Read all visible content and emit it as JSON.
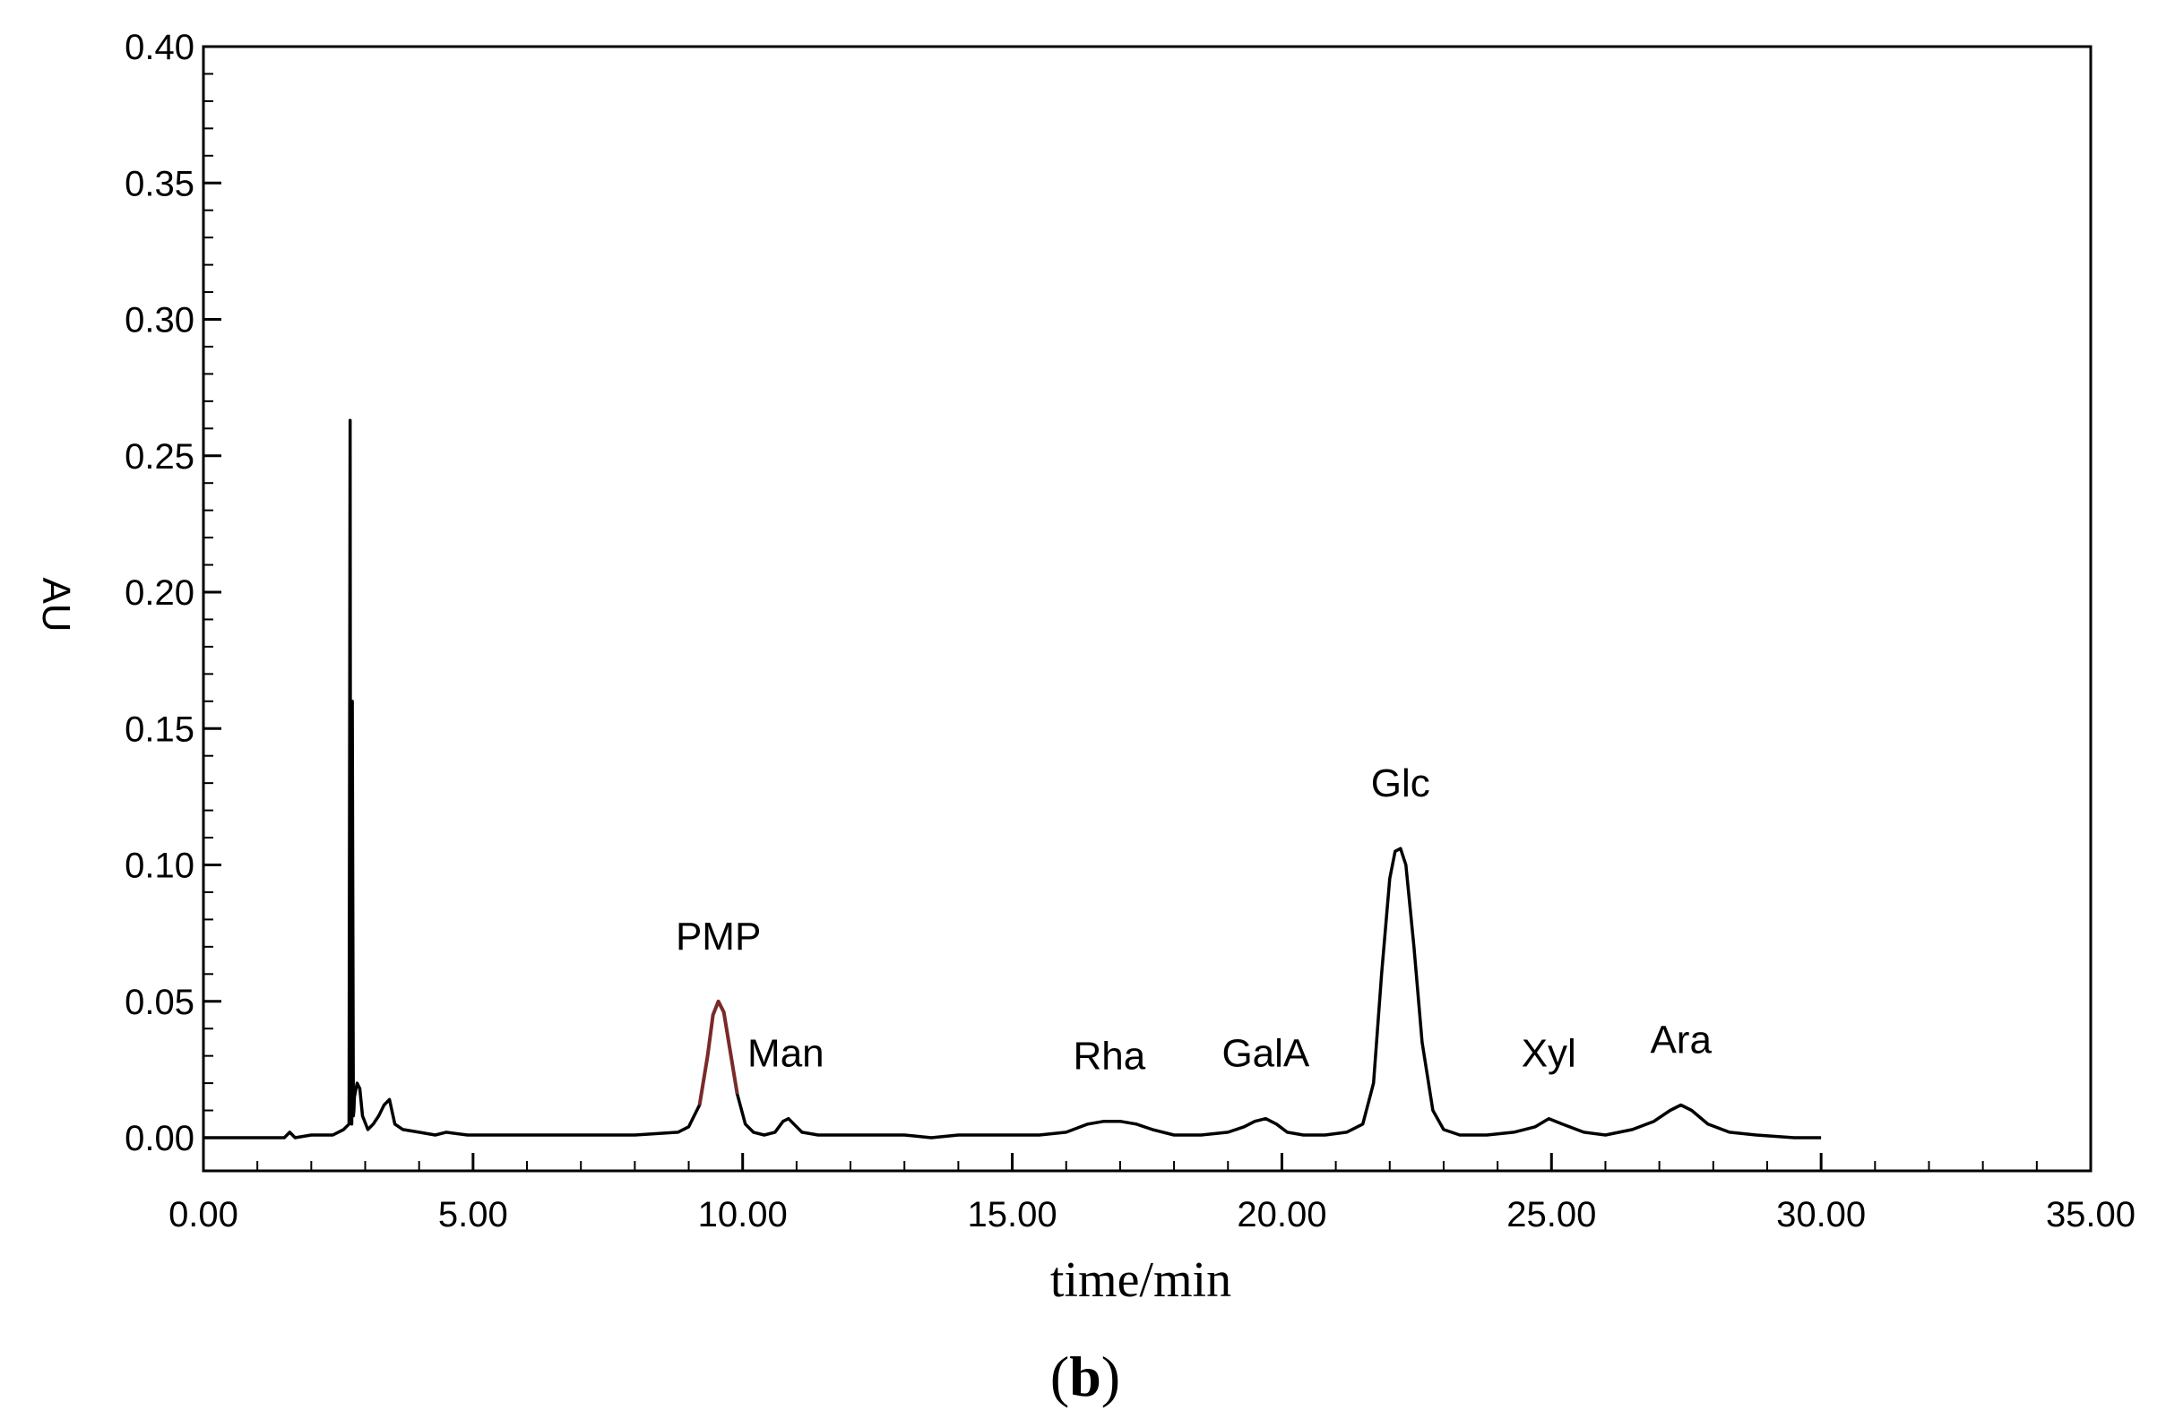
{
  "chart_data": {
    "type": "line",
    "title": "",
    "xlabel": "time/min",
    "ylabel": "AU",
    "panel_label": {
      "open": "(",
      "letter": "b",
      "close": ")"
    },
    "xlim": [
      0,
      35
    ],
    "ylim": [
      0,
      0.4
    ],
    "x_ticks": [
      "0.00",
      "5.00",
      "10.00",
      "15.00",
      "20.00",
      "25.00",
      "30.00",
      "35.00"
    ],
    "y_ticks": [
      "0.00",
      "0.05",
      "0.10",
      "0.15",
      "0.20",
      "0.25",
      "0.30",
      "0.35",
      "0.40"
    ],
    "grid": false,
    "legend": "none",
    "line_color": "#000000",
    "pmp_peak_color": "#7a2a2a",
    "annotations": [
      {
        "text": "PMP",
        "x": 9.55,
        "y": 0.05
      },
      {
        "text": "Man",
        "x": 10.8,
        "y": 0.007
      },
      {
        "text": "Rha",
        "x": 16.8,
        "y": 0.006
      },
      {
        "text": "GalA",
        "x": 19.7,
        "y": 0.007
      },
      {
        "text": "Glc",
        "x": 22.2,
        "y": 0.106
      },
      {
        "text": "Xyl",
        "x": 24.95,
        "y": 0.007
      },
      {
        "text": "Ara",
        "x": 27.4,
        "y": 0.012
      }
    ],
    "series": [
      {
        "x": [
          0.0,
          1.5,
          1.6,
          1.7,
          2.0,
          2.4,
          2.6,
          2.7,
          2.72,
          2.73,
          2.75,
          2.76,
          2.78,
          2.79,
          2.8,
          2.85,
          2.9,
          2.95,
          3.05,
          3.15,
          3.25,
          3.35,
          3.45,
          3.55,
          3.7,
          4.0,
          4.3,
          4.5,
          4.9,
          5.0,
          6.0,
          8.0,
          8.8,
          9.0,
          9.2,
          9.35,
          9.45,
          9.55,
          9.65,
          9.75,
          9.9,
          10.05,
          10.2,
          10.4,
          10.6,
          10.75,
          10.85,
          10.95,
          11.1,
          11.4,
          11.8,
          12.5,
          13.0,
          13.5,
          14.0,
          14.5,
          15.0,
          15.5,
          16.0,
          16.4,
          16.7,
          17.0,
          17.3,
          17.6,
          18.0,
          18.5,
          19.0,
          19.3,
          19.5,
          19.7,
          19.9,
          20.1,
          20.4,
          20.8,
          21.2,
          21.5,
          21.7,
          21.85,
          22.0,
          22.1,
          22.2,
          22.3,
          22.45,
          22.6,
          22.8,
          23.0,
          23.3,
          23.8,
          24.3,
          24.7,
          24.95,
          25.2,
          25.6,
          26.0,
          26.5,
          26.9,
          27.2,
          27.4,
          27.6,
          27.9,
          28.3,
          28.8,
          29.5,
          30.0
        ],
        "y": [
          0.0,
          0.0,
          0.002,
          0.0,
          0.001,
          0.001,
          0.003,
          0.005,
          0.263,
          0.01,
          0.005,
          0.16,
          0.008,
          0.01,
          0.015,
          0.02,
          0.018,
          0.008,
          0.003,
          0.005,
          0.008,
          0.012,
          0.014,
          0.005,
          0.003,
          0.002,
          0.001,
          0.002,
          0.001,
          0.001,
          0.001,
          0.001,
          0.002,
          0.004,
          0.012,
          0.03,
          0.045,
          0.05,
          0.046,
          0.034,
          0.016,
          0.005,
          0.002,
          0.001,
          0.002,
          0.006,
          0.007,
          0.005,
          0.002,
          0.001,
          0.001,
          0.001,
          0.001,
          0.0,
          0.001,
          0.001,
          0.001,
          0.001,
          0.002,
          0.005,
          0.006,
          0.006,
          0.005,
          0.003,
          0.001,
          0.001,
          0.002,
          0.004,
          0.006,
          0.007,
          0.005,
          0.002,
          0.001,
          0.001,
          0.002,
          0.005,
          0.02,
          0.06,
          0.095,
          0.105,
          0.106,
          0.1,
          0.07,
          0.035,
          0.01,
          0.003,
          0.001,
          0.001,
          0.002,
          0.004,
          0.007,
          0.005,
          0.002,
          0.001,
          0.003,
          0.006,
          0.01,
          0.012,
          0.01,
          0.005,
          0.002,
          0.001,
          0.0,
          0.0
        ]
      }
    ]
  }
}
